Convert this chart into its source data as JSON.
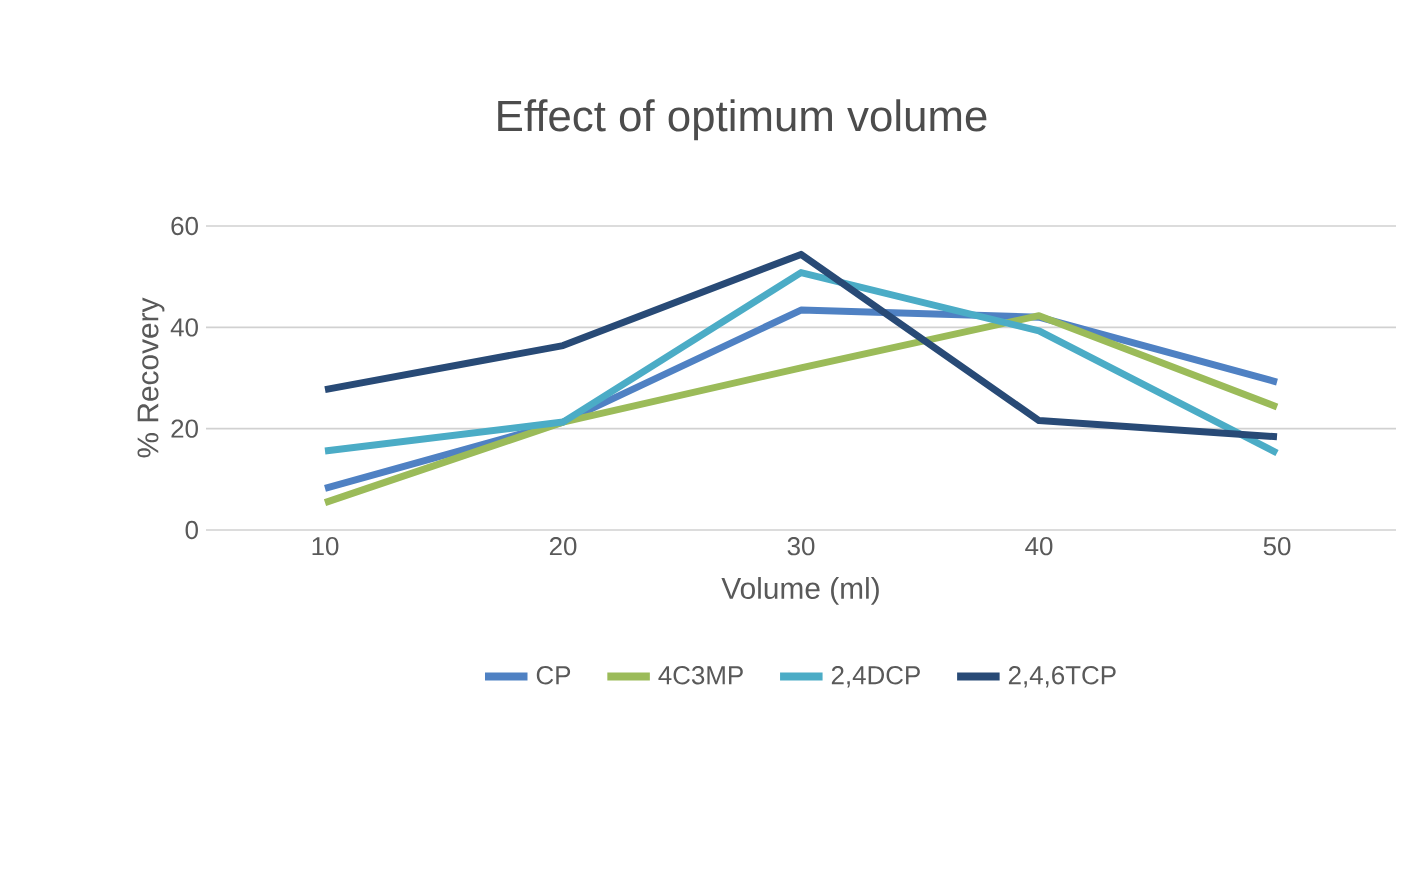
{
  "chart_data": {
    "type": "line",
    "title": "Effect of optimum volume",
    "xlabel": "Volume (ml)",
    "ylabel": "% Recovery",
    "categories": [
      "10",
      "20",
      "30",
      "40",
      "50"
    ],
    "series": [
      {
        "name": "CP",
        "color": "#4f81c3",
        "values": [
          8.2,
          21.3,
          43.4,
          42,
          29.2
        ]
      },
      {
        "name": "4C3MP",
        "color": "#9bbb59",
        "values": [
          5.4,
          21.3,
          32,
          42.3,
          24.3
        ]
      },
      {
        "name": "2,4DCP",
        "color": "#4bacc6",
        "values": [
          15.6,
          21.3,
          50.8,
          39.3,
          15.2
        ]
      },
      {
        "name": "2,4,6TCP",
        "color": "#284a76",
        "values": [
          27.7,
          36.4,
          54.4,
          21.6,
          18.4
        ]
      }
    ],
    "ylim": [
      0,
      60
    ],
    "yticks": [
      0,
      20,
      40,
      60
    ],
    "grid": "y",
    "legend": "bottom",
    "line_style": "solid",
    "marker": "none"
  }
}
